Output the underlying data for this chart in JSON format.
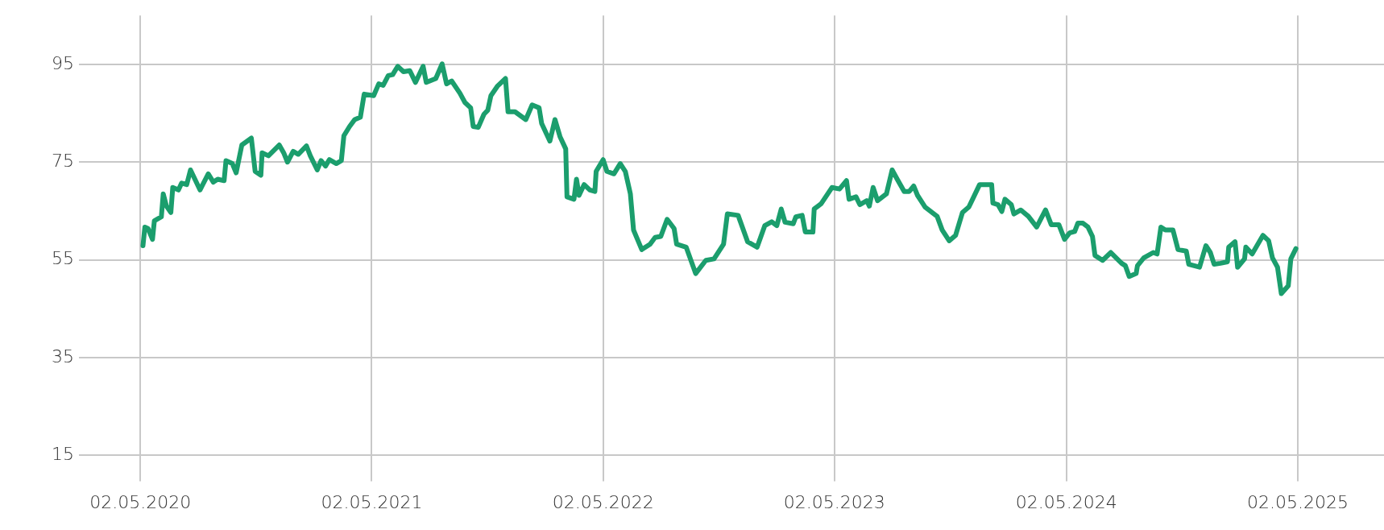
{
  "chart_data": {
    "type": "line",
    "x": [
      "2020-05-06",
      "2020-05-09",
      "2020-05-14",
      "2020-05-21",
      "2020-05-24",
      "2020-06-04",
      "2020-06-07",
      "2020-06-12",
      "2020-06-19",
      "2020-06-22",
      "2020-07-01",
      "2020-07-06",
      "2020-07-14",
      "2020-07-20",
      "2020-08-04",
      "2020-08-17",
      "2020-08-25",
      "2020-09-01",
      "2020-09-11",
      "2020-09-14",
      "2020-09-24",
      "2020-09-30",
      "2020-10-09",
      "2020-10-24",
      "2020-10-30",
      "2020-11-08",
      "2020-11-10",
      "2020-11-20",
      "2020-12-07",
      "2020-12-14",
      "2020-12-20",
      "2020-12-29",
      "2021-01-06",
      "2021-01-19",
      "2021-01-25",
      "2021-02-05",
      "2021-02-11",
      "2021-02-18",
      "2021-02-24",
      "2021-03-07",
      "2021-03-15",
      "2021-03-19",
      "2021-03-28",
      "2021-04-05",
      "2021-04-14",
      "2021-04-20",
      "2021-05-05",
      "2021-05-13",
      "2021-05-20",
      "2021-05-28",
      "2021-06-04",
      "2021-06-12",
      "2021-06-21",
      "2021-07-01",
      "2021-07-10",
      "2021-07-22",
      "2021-07-27",
      "2021-08-11",
      "2021-08-21",
      "2021-08-28",
      "2021-09-05",
      "2021-09-18",
      "2021-09-26",
      "2021-10-05",
      "2021-10-09",
      "2021-10-17",
      "2021-10-26",
      "2021-11-01",
      "2021-11-06",
      "2021-11-16",
      "2021-11-29",
      "2021-12-03",
      "2021-12-14",
      "2021-12-31",
      "2022-01-10",
      "2022-01-21",
      "2022-01-25",
      "2022-02-07",
      "2022-02-15",
      "2022-02-23",
      "2022-03-04",
      "2022-03-06",
      "2022-03-17",
      "2022-03-21",
      "2022-03-25",
      "2022-04-02",
      "2022-04-11",
      "2022-04-19",
      "2022-04-21",
      "2022-05-02",
      "2022-05-08",
      "2022-05-19",
      "2022-05-29",
      "2022-06-06",
      "2022-06-14",
      "2022-06-19",
      "2022-07-02",
      "2022-07-15",
      "2022-07-23",
      "2022-08-01",
      "2022-08-11",
      "2022-08-22",
      "2022-08-26",
      "2022-09-10",
      "2022-09-25",
      "2022-10-11",
      "2022-10-24",
      "2022-11-08",
      "2022-11-14",
      "2022-12-01",
      "2022-12-16",
      "2022-12-31",
      "2023-01-12",
      "2023-01-23",
      "2023-01-31",
      "2023-02-07",
      "2023-02-13",
      "2023-02-26",
      "2023-03-02",
      "2023-03-12",
      "2023-03-17",
      "2023-03-29",
      "2023-03-31",
      "2023-04-11",
      "2023-04-28",
      "2023-05-10",
      "2023-05-21",
      "2023-05-25",
      "2023-06-05",
      "2023-06-11",
      "2023-06-22",
      "2023-06-26",
      "2023-07-02",
      "2023-07-09",
      "2023-07-23",
      "2023-08-01",
      "2023-08-09",
      "2023-08-20",
      "2023-08-28",
      "2023-09-04",
      "2023-09-10",
      "2023-09-22",
      "2023-10-11",
      "2023-10-19",
      "2023-10-30",
      "2023-11-09",
      "2023-11-20",
      "2023-11-30",
      "2023-12-17",
      "2024-01-05",
      "2024-01-07",
      "2024-01-15",
      "2024-01-21",
      "2024-01-26",
      "2024-02-05",
      "2024-02-09",
      "2024-02-20",
      "2024-03-03",
      "2024-03-16",
      "2024-03-30",
      "2024-04-08",
      "2024-04-20",
      "2024-04-29",
      "2024-05-07",
      "2024-05-15",
      "2024-05-20",
      "2024-05-28",
      "2024-06-05",
      "2024-06-12",
      "2024-06-16",
      "2024-06-28",
      "2024-07-11",
      "2024-07-28",
      "2024-08-03",
      "2024-08-09",
      "2024-08-20",
      "2024-08-22",
      "2024-09-01",
      "2024-09-16",
      "2024-09-22",
      "2024-09-28",
      "2024-10-05",
      "2024-10-17",
      "2024-10-25",
      "2024-11-07",
      "2024-11-11",
      "2024-11-28",
      "2024-12-08",
      "2024-12-15",
      "2024-12-21",
      "2024-12-31",
      "2025-01-11",
      "2025-01-13",
      "2025-01-23",
      "2025-01-27",
      "2025-02-07",
      "2025-02-09",
      "2025-02-19",
      "2025-03-08",
      "2025-03-17",
      "2025-03-23",
      "2025-03-31",
      "2025-04-06",
      "2025-04-17",
      "2025-04-21",
      "2025-04-29"
    ],
    "series": [
      {
        "color": "#1b9e6d",
        "values": [
          57.9,
          61.7,
          61.4,
          59.2,
          63.0,
          63.8,
          68.5,
          66.0,
          64.7,
          69.8,
          69.3,
          70.7,
          70.4,
          73.4,
          69.3,
          72.6,
          70.9,
          71.5,
          71.2,
          75.3,
          74.7,
          72.8,
          78.5,
          79.9,
          73.1,
          72.3,
          76.9,
          76.3,
          78.5,
          76.9,
          75.0,
          77.2,
          76.6,
          78.3,
          76.3,
          73.4,
          75.3,
          74.2,
          75.5,
          74.7,
          75.3,
          80.4,
          82.3,
          83.7,
          84.2,
          88.9,
          88.6,
          91.0,
          90.7,
          92.7,
          92.9,
          94.6,
          93.5,
          93.7,
          91.3,
          94.6,
          91.3,
          92.1,
          95.1,
          91.0,
          91.6,
          89.1,
          87.2,
          86.1,
          82.3,
          82.1,
          84.8,
          85.6,
          88.6,
          90.5,
          92.1,
          85.3,
          85.3,
          83.7,
          86.7,
          86.1,
          82.9,
          79.3,
          83.7,
          80.2,
          77.7,
          67.9,
          67.4,
          71.5,
          68.2,
          70.4,
          69.3,
          69.0,
          73.1,
          75.5,
          73.1,
          72.6,
          74.7,
          73.1,
          68.5,
          61.1,
          57.1,
          58.2,
          59.6,
          59.8,
          63.3,
          61.4,
          58.2,
          57.6,
          52.2,
          54.9,
          55.2,
          58.2,
          64.4,
          64.1,
          58.7,
          57.6,
          62.0,
          62.8,
          62.0,
          65.4,
          62.7,
          62.4,
          63.8,
          64.1,
          60.7,
          60.7,
          65.4,
          66.5,
          69.8,
          69.5,
          71.2,
          67.4,
          67.9,
          66.3,
          67.1,
          66.0,
          69.8,
          67.1,
          68.5,
          73.4,
          71.5,
          69.0,
          69.0,
          70.1,
          68.2,
          65.8,
          63.9,
          61.1,
          58.9,
          60.0,
          64.7,
          65.8,
          70.4,
          70.4,
          66.6,
          66.3,
          64.9,
          67.4,
          66.3,
          64.4,
          65.2,
          63.9,
          61.7,
          65.2,
          62.2,
          62.2,
          59.2,
          60.5,
          60.8,
          62.5,
          62.5,
          61.7,
          59.8,
          55.9,
          54.9,
          56.5,
          54.3,
          53.8,
          51.6,
          52.2,
          53.8,
          55.4,
          56.5,
          56.2,
          61.7,
          61.1,
          61.1,
          57.1,
          56.8,
          54.1,
          53.5,
          57.9,
          56.5,
          54.1,
          54.3,
          54.6,
          57.6,
          58.7,
          53.5,
          55.2,
          57.6,
          56.2,
          60.0,
          58.9,
          55.4,
          53.5,
          48.1,
          49.7,
          55.2,
          57.3
        ]
      }
    ],
    "xlim": [
      "2020-01-26",
      "2025-09-15"
    ],
    "xticks": [
      {
        "value": "2020-05-02",
        "label": "02.05.2020"
      },
      {
        "value": "2021-05-02",
        "label": "02.05.2021"
      },
      {
        "value": "2022-05-02",
        "label": "02.05.2022"
      },
      {
        "value": "2023-05-02",
        "label": "02.05.2023"
      },
      {
        "value": "2024-05-02",
        "label": "02.05.2024"
      },
      {
        "value": "2025-05-02",
        "label": "02.05.2025"
      }
    ],
    "ylim": [
      11,
      105
    ],
    "yticks": [
      15,
      35,
      55,
      75,
      95
    ],
    "grid": true,
    "legend": false,
    "marker": "none",
    "line_style": "solid"
  }
}
